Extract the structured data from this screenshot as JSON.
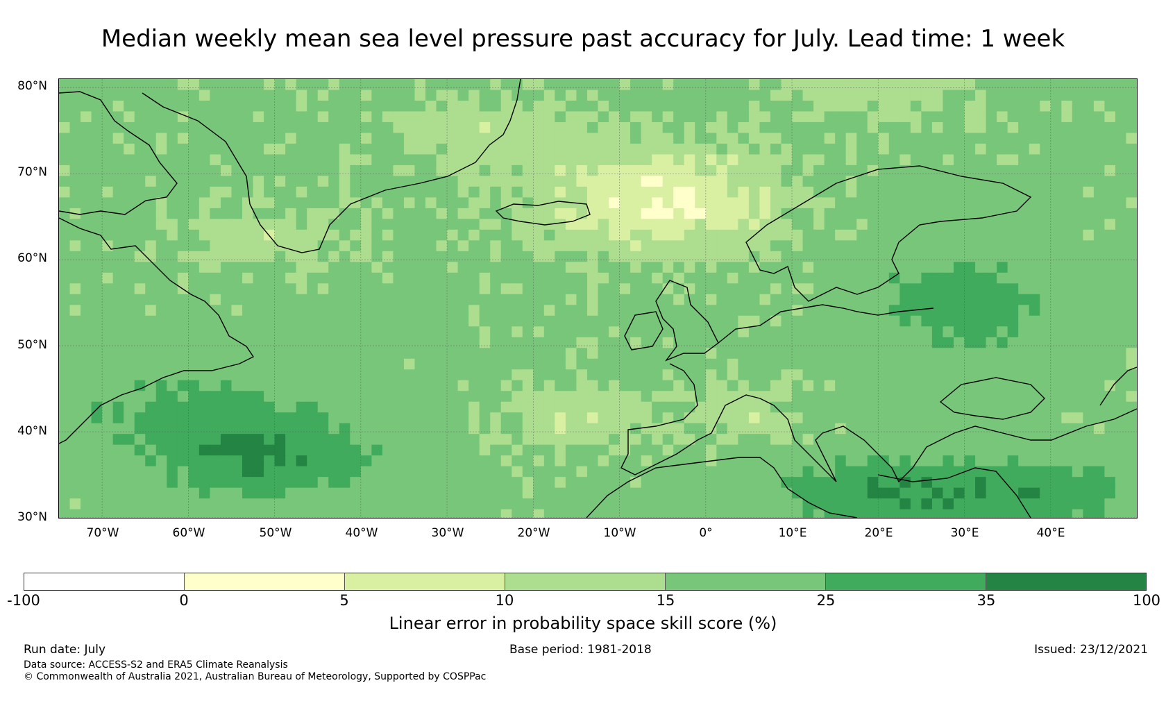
{
  "title": "Median weekly mean sea level pressure past accuracy for July. Lead time: 1 week",
  "map": {
    "lat_labels": [
      "80°N",
      "70°N",
      "60°N",
      "50°N",
      "40°N",
      "30°N"
    ],
    "lon_labels": [
      "70°W",
      "60°W",
      "50°W",
      "40°W",
      "30°W",
      "20°W",
      "10°W",
      "0°",
      "10°E",
      "20°E",
      "30°E",
      "40°E"
    ],
    "lat_range": [
      30,
      81
    ],
    "lon_range": [
      -75,
      50
    ]
  },
  "colorbar": {
    "ticks": [
      "-100",
      "0",
      "5",
      "10",
      "15",
      "25",
      "35",
      "100"
    ],
    "colors": [
      "#ffffff",
      "#ffffcc",
      "#d9f0a3",
      "#addd8e",
      "#78c679",
      "#41ab5d",
      "#238443"
    ],
    "label": "Linear error in probability space skill score (%)"
  },
  "footer": {
    "run_date": "Run date: July",
    "base_period": "Base period: 1981-2018",
    "issued": "Issued: 23/12/2021",
    "data_source": "Data source: ACCESS-S2 and ERA5 Climate Reanalysis",
    "copyright": "© Commonwealth of Australia 2021, Australian Bureau of Meteorology, Supported by COSPPac"
  }
}
